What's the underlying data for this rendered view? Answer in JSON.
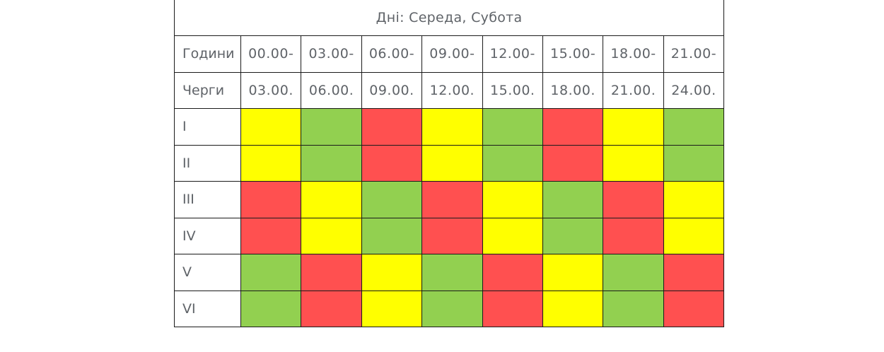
{
  "title": "Дні:  Середа, Субота",
  "hours_label": "Години",
  "queues_label": "Черги",
  "time_starts": [
    "00.00-",
    "03.00-",
    "06.00-",
    "09.00-",
    "12.00-",
    "15.00-",
    "18.00-",
    "21.00-"
  ],
  "time_ends": [
    "03.00.",
    "06.00.",
    "09.00.",
    "12.00.",
    "15.00.",
    "18.00.",
    "21.00.",
    "24.00."
  ],
  "colors": {
    "yellow": "#ffff00",
    "green": "#92d050",
    "red": "#ff5050"
  },
  "queues": [
    {
      "name": "I",
      "slots": [
        "yellow",
        "green",
        "red",
        "yellow",
        "green",
        "red",
        "yellow",
        "green"
      ]
    },
    {
      "name": "II",
      "slots": [
        "yellow",
        "green",
        "red",
        "yellow",
        "green",
        "red",
        "yellow",
        "green"
      ]
    },
    {
      "name": "III",
      "slots": [
        "red",
        "yellow",
        "green",
        "red",
        "yellow",
        "green",
        "red",
        "yellow"
      ]
    },
    {
      "name": "IV",
      "slots": [
        "red",
        "yellow",
        "green",
        "red",
        "yellow",
        "green",
        "red",
        "yellow"
      ]
    },
    {
      "name": "V",
      "slots": [
        "green",
        "red",
        "yellow",
        "green",
        "red",
        "yellow",
        "green",
        "red"
      ]
    },
    {
      "name": "VI",
      "slots": [
        "green",
        "red",
        "yellow",
        "green",
        "red",
        "yellow",
        "green",
        "red"
      ]
    }
  ]
}
